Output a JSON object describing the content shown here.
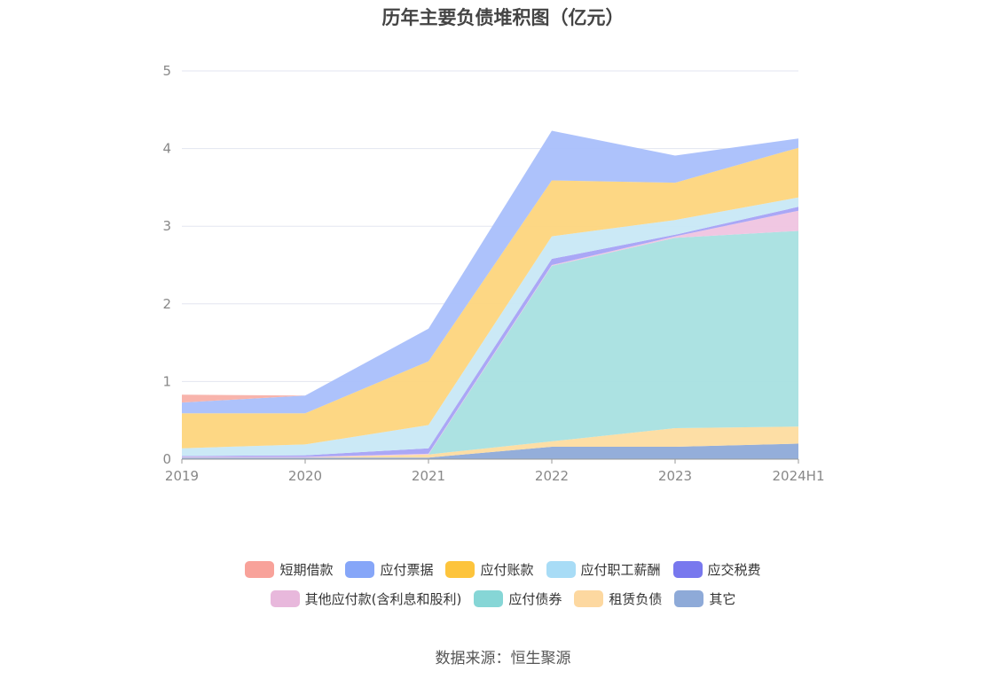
{
  "title": "历年主要负债堆积图（亿元）",
  "source": "数据来源：恒生聚源",
  "chart_data": {
    "type": "area",
    "stacked": true,
    "categories": [
      "2019",
      "2020",
      "2021",
      "2022",
      "2023",
      "2024H1"
    ],
    "ylim": [
      0,
      5
    ],
    "yticks": [
      "0",
      "1",
      "2",
      "3",
      "4",
      "5"
    ],
    "grid": true,
    "legend_position": "bottom",
    "series": [
      {
        "name": "其它",
        "color": "#8eaad8",
        "values": [
          0.02,
          0.02,
          0.02,
          0.16,
          0.16,
          0.2
        ]
      },
      {
        "name": "租赁负债",
        "color": "#fddca0",
        "values": [
          0.0,
          0.0,
          0.04,
          0.07,
          0.24,
          0.22
        ]
      },
      {
        "name": "应付债券",
        "color": "#a8e0e0",
        "values": [
          0.0,
          0.0,
          0.0,
          2.26,
          2.45,
          2.52
        ]
      },
      {
        "name": "其他应付款(含利息和股利)",
        "color": "#efc4e0",
        "values": [
          0.01,
          0.01,
          0.01,
          0.01,
          0.02,
          0.26
        ]
      },
      {
        "name": "应交税费",
        "color": "#a5a2f5",
        "values": [
          0.01,
          0.02,
          0.07,
          0.08,
          0.02,
          0.05
        ]
      },
      {
        "name": "应付职工薪酬",
        "color": "#c8e8f6",
        "values": [
          0.1,
          0.14,
          0.3,
          0.29,
          0.19,
          0.12
        ]
      },
      {
        "name": "应付账款",
        "color": "#fdd57d",
        "values": [
          0.45,
          0.4,
          0.82,
          0.72,
          0.48,
          0.64
        ]
      },
      {
        "name": "应付票据",
        "color": "#a9bffb",
        "values": [
          0.14,
          0.23,
          0.42,
          0.64,
          0.35,
          0.12
        ]
      },
      {
        "name": "短期借款",
        "color": "#f8b0a8",
        "values": [
          0.1,
          0.0,
          0.0,
          0.0,
          0.0,
          0.0
        ]
      }
    ]
  },
  "legend": {
    "row1": [
      {
        "label": "短期借款",
        "color": "#f8a29a"
      },
      {
        "label": "应付票据",
        "color": "#86a6f8"
      },
      {
        "label": "应付账款",
        "color": "#fdc43c"
      },
      {
        "label": "应付职工薪酬",
        "color": "#a8dcf6"
      },
      {
        "label": "应交税费",
        "color": "#7878ee"
      }
    ],
    "row2": [
      {
        "label": "其他应付款(含利息和股利)",
        "color": "#e8b8dc"
      },
      {
        "label": "应付债券",
        "color": "#86d6d6"
      },
      {
        "label": "租赁负债",
        "color": "#fdd8a0"
      },
      {
        "label": "其它",
        "color": "#8eaad8"
      }
    ]
  }
}
